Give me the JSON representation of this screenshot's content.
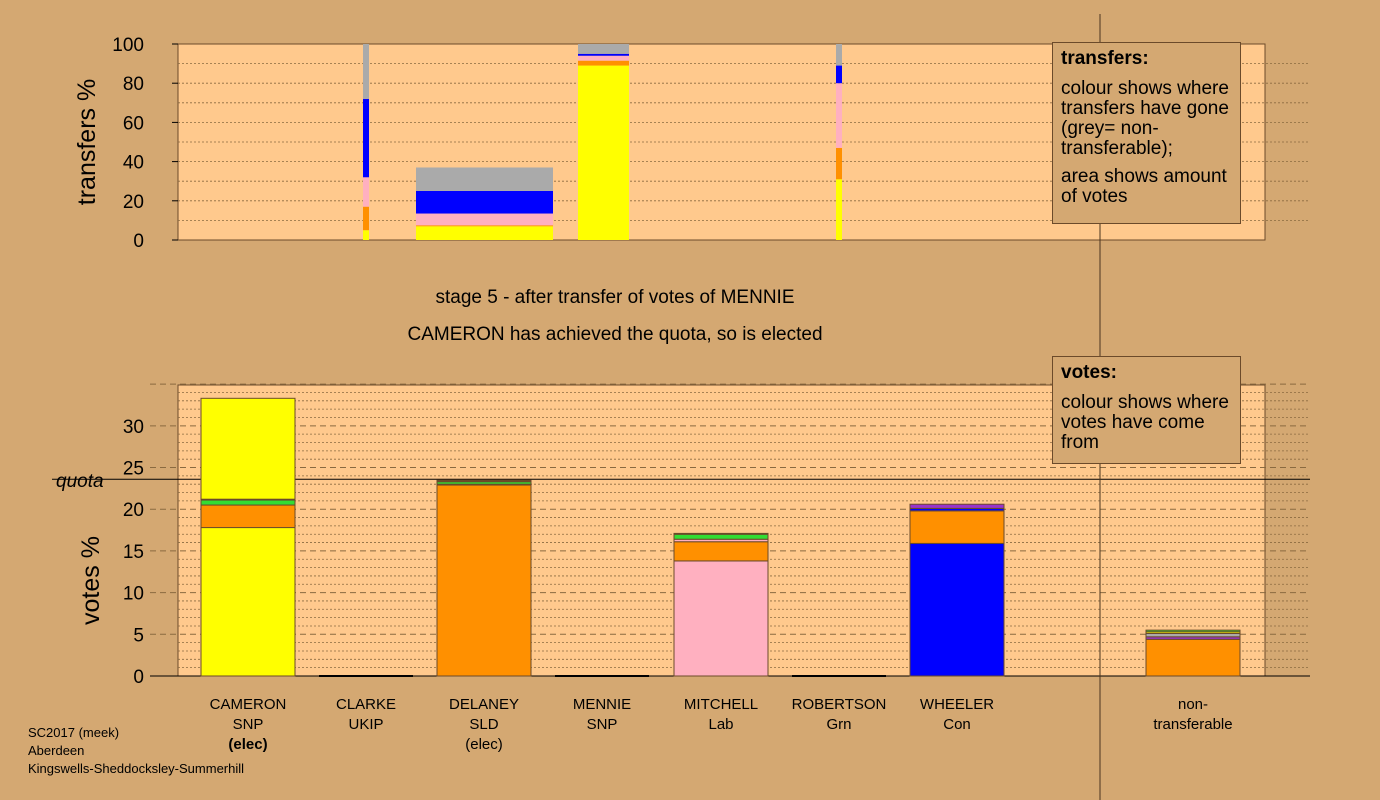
{
  "header": {
    "stage_text": "stage 5 - after transfer of votes of MENNIE",
    "status_text": "CAMERON has achieved the quota, so is elected"
  },
  "transfers_legend": {
    "title": "transfers:",
    "line1": "colour shows where transfers have gone (grey= non-transferable);",
    "line2": "area shows amount of votes"
  },
  "votes_legend": {
    "title": "votes:",
    "line1": "colour shows where votes have come from"
  },
  "footer": {
    "line1": "SC2017 (meek)",
    "line2": "Aberdeen",
    "line3": "Kingswells-Sheddocksley-Summerhill"
  },
  "colors": {
    "background": "#d4a872",
    "plot_bg": "#ffc98d",
    "SNP": "#ffff00",
    "SLD": "#ff9000",
    "Lab": "#ffb0c0",
    "Con": "#0000ff",
    "Grn": "#33dd33",
    "UKIP": "#9933cc",
    "nontransferable": "#aaaaaa"
  },
  "candidates": [
    {
      "name": "CAMERON",
      "party": "SNP",
      "status": "(elec)",
      "status_bold": true
    },
    {
      "name": "CLARKE",
      "party": "UKIP",
      "status": ""
    },
    {
      "name": "DELANEY",
      "party": "SLD",
      "status": "(elec)"
    },
    {
      "name": "MENNIE",
      "party": "SNP",
      "status": ""
    },
    {
      "name": "MITCHELL",
      "party": "Lab",
      "status": ""
    },
    {
      "name": "ROBERTSON",
      "party": "Grn",
      "status": ""
    },
    {
      "name": "WHEELER",
      "party": "Con",
      "status": ""
    },
    {
      "name": "non-",
      "party": "transferable",
      "status": ""
    }
  ],
  "chart_data": [
    {
      "type": "bar",
      "ylabel": "transfers %",
      "ylim": [
        0,
        100
      ],
      "yticks": [
        0,
        20,
        40,
        60,
        80,
        100
      ],
      "grid": "dotted",
      "note": "stacked transfer bars, width proportional to amount of votes transferred",
      "transfers": [
        {
          "from": "CLARKE",
          "weight": 0.9,
          "segments": [
            {
              "party": "SNP",
              "value": 5
            },
            {
              "party": "SLD",
              "value": 12
            },
            {
              "party": "Lab",
              "value": 15
            },
            {
              "party": "Con",
              "value": 40
            },
            {
              "party": "nontransferable",
              "value": 28
            }
          ]
        },
        {
          "from": "DELANEY",
          "weight": 23,
          "height": 37,
          "segments": [
            {
              "party": "SNP",
              "value": 7
            },
            {
              "party": "SLD",
              "value": 0.5
            },
            {
              "party": "Lab",
              "value": 6
            },
            {
              "party": "Con",
              "value": 11.5
            },
            {
              "party": "nontransferable",
              "value": 12
            }
          ]
        },
        {
          "from": "MENNIE",
          "weight": 8.6,
          "segments": [
            {
              "party": "SNP",
              "value": 89
            },
            {
              "party": "SLD",
              "value": 2.5
            },
            {
              "party": "Lab",
              "value": 2.5
            },
            {
              "party": "Con",
              "value": 1
            },
            {
              "party": "nontransferable",
              "value": 5
            }
          ]
        },
        {
          "from": "ROBERTSON",
          "weight": 1.0,
          "segments": [
            {
              "party": "SNP",
              "value": 31
            },
            {
              "party": "SLD",
              "value": 16
            },
            {
              "party": "Lab",
              "value": 33
            },
            {
              "party": "Con",
              "value": 9
            },
            {
              "party": "nontransferable",
              "value": 11
            }
          ]
        }
      ]
    },
    {
      "type": "bar",
      "ylabel": "votes %",
      "ylim": [
        0,
        35
      ],
      "yticks": [
        0,
        5,
        10,
        15,
        20,
        25,
        30
      ],
      "quota_label": "quota",
      "quota": 23.6,
      "categories": [
        "CAMERON",
        "CLARKE",
        "DELANEY",
        "MENNIE",
        "MITCHELL",
        "ROBERTSON",
        "WHEELER",
        "non-transferable"
      ],
      "stacks": [
        [
          {
            "party": "SNP",
            "value": 17.8
          },
          {
            "party": "SLD",
            "value": 2.7
          },
          {
            "party": "Grn",
            "value": 0.6
          },
          {
            "party": "Lab",
            "value": 0.1
          },
          {
            "party": "SNP",
            "value": 12.1
          }
        ],
        [],
        [
          {
            "party": "SLD",
            "value": 22.9
          },
          {
            "party": "Lab",
            "value": 0.1
          },
          {
            "party": "Grn",
            "value": 0.3
          },
          {
            "party": "UKIP",
            "value": 0.1
          },
          {
            "party": "Con",
            "value": 0.1
          }
        ],
        [],
        [
          {
            "party": "Lab",
            "value": 13.8
          },
          {
            "party": "SLD",
            "value": 2.3
          },
          {
            "party": "Lab",
            "value": 0.3
          },
          {
            "party": "Grn",
            "value": 0.6
          },
          {
            "party": "UKIP",
            "value": 0.1
          }
        ],
        [],
        [
          {
            "party": "Con",
            "value": 15.9
          },
          {
            "party": "SLD",
            "value": 3.9
          },
          {
            "party": "Con",
            "value": 0.3
          },
          {
            "party": "UKIP",
            "value": 0.5
          }
        ],
        [
          {
            "party": "SLD",
            "value": 4.4
          },
          {
            "party": "UKIP",
            "value": 0.3
          },
          {
            "party": "nontransferable",
            "value": 0.4
          },
          {
            "party": "SNP",
            "value": 0.2
          },
          {
            "party": "Grn",
            "value": 0.2
          }
        ]
      ]
    }
  ]
}
